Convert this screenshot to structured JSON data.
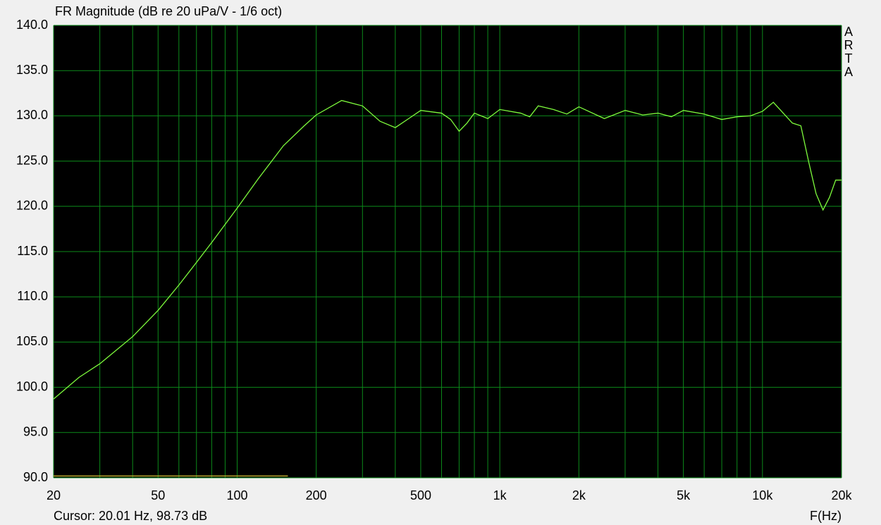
{
  "chart_data": {
    "type": "line",
    "title": "FR Magnitude (dB re 20 uPa/V - 1/6 oct)",
    "brand": "ARTA",
    "cursor_text": "Cursor: 20.01 Hz, 98.73 dB",
    "x_label": "F(Hz)",
    "log_x": true,
    "grid": true,
    "xlim": [
      20,
      20000
    ],
    "ylim": [
      90,
      140
    ],
    "xticks": [
      20,
      50,
      100,
      200,
      500,
      {
        "value": 1000,
        "label": "1k"
      },
      {
        "value": 2000,
        "label": "2k"
      },
      {
        "value": 5000,
        "label": "5k"
      },
      {
        "value": 10000,
        "label": "10k"
      },
      {
        "value": 20000,
        "label": "20k"
      }
    ],
    "xgrid": [
      30,
      40,
      60,
      70,
      80,
      90,
      300,
      400,
      600,
      700,
      800,
      900,
      3000,
      4000,
      6000,
      7000,
      8000,
      9000
    ],
    "yticks": [
      {
        "value": 90,
        "label": "90.0"
      },
      {
        "value": 95,
        "label": "95.0"
      },
      {
        "value": 100,
        "label": "100.0"
      },
      {
        "value": 105,
        "label": "105.0"
      },
      {
        "value": 110,
        "label": "110.0"
      },
      {
        "value": 115,
        "label": "115.0"
      },
      {
        "value": 120,
        "label": "120.0"
      },
      {
        "value": 125,
        "label": "125.0"
      },
      {
        "value": 130,
        "label": "130.0"
      },
      {
        "value": 135,
        "label": "135.0"
      },
      {
        "value": 140,
        "label": "140.0"
      }
    ],
    "series": [
      {
        "color": "#7dfa3c",
        "x": [
          20,
          25,
          30,
          40,
          50,
          60,
          70,
          80,
          100,
          120,
          150,
          180,
          200,
          250,
          300,
          350,
          400,
          450,
          500,
          600,
          650,
          700,
          750,
          800,
          900,
          1000,
          1200,
          1300,
          1400,
          1600,
          1800,
          2000,
          2500,
          3000,
          3500,
          4000,
          4500,
          5000,
          6000,
          7000,
          8000,
          9000,
          10000,
          11000,
          12000,
          13000,
          14000,
          15000,
          16000,
          17000,
          18000,
          19000,
          20000
        ],
        "values": [
          98.7,
          101.1,
          102.6,
          105.6,
          108.5,
          111.3,
          113.8,
          116.0,
          119.8,
          123.0,
          126.7,
          128.9,
          130.1,
          131.7,
          131.1,
          129.4,
          128.7,
          129.7,
          130.6,
          130.3,
          129.6,
          128.3,
          129.2,
          130.3,
          129.7,
          130.7,
          130.3,
          129.9,
          131.1,
          130.7,
          130.2,
          131.0,
          129.7,
          130.6,
          130.1,
          130.3,
          129.9,
          130.6,
          130.2,
          129.6,
          129.9,
          130.0,
          130.5,
          131.5,
          130.3,
          129.2,
          128.9,
          124.9,
          121.4,
          119.6,
          121.0,
          122.9,
          122.9
        ]
      },
      {
        "color": "#c8b432",
        "x": [
          20,
          156
        ],
        "values": [
          90.2,
          90.2
        ]
      }
    ]
  }
}
